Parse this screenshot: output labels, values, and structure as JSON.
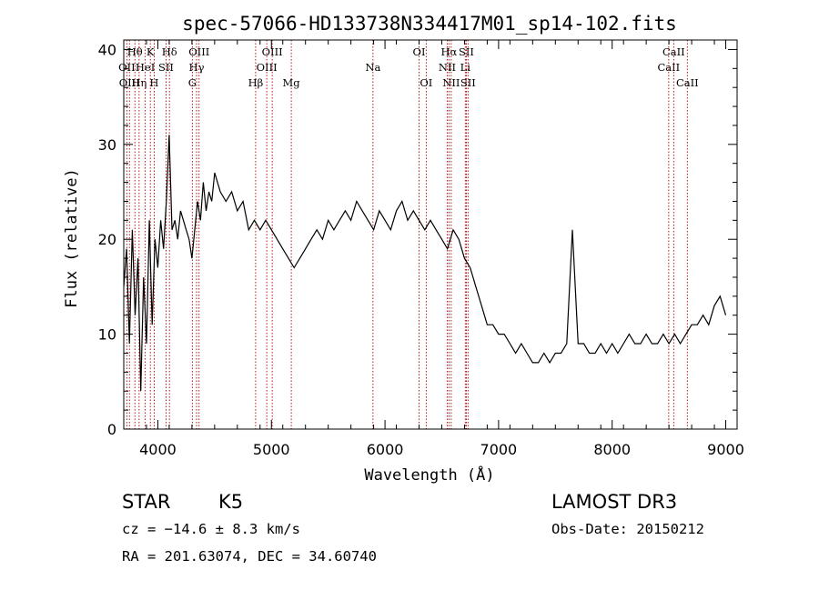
{
  "title": "spec-57066-HD133738N334417M01_sp14-102.fits",
  "info": {
    "object_class": "STAR",
    "subclass": "K5",
    "redshift": "cz = −14.6 ± 8.3 km/s",
    "coords": "RA = 201.63074, DEC =  34.60740",
    "survey": "LAMOST DR3",
    "obs_date": "Obs-Date: 20150212"
  },
  "colors": {
    "spectrum": "#000000",
    "line_marker": "#b00000",
    "background": "#ffffff"
  },
  "chart_data": {
    "type": "line",
    "title": "spec-57066-HD133738N334417M01_sp14-102.fits",
    "xlabel": "Wavelength (Å)",
    "ylabel": "Flux (relative)",
    "xlim": [
      3700,
      9100
    ],
    "ylim": [
      0,
      41
    ],
    "xticks": [
      4000,
      5000,
      6000,
      7000,
      8000,
      9000
    ],
    "yticks": [
      0,
      10,
      20,
      30,
      40
    ],
    "grid": false,
    "series": [
      {
        "x": [
          3700,
          3725,
          3750,
          3775,
          3800,
          3825,
          3850,
          3875,
          3900,
          3925,
          3950,
          3975,
          4000,
          4025,
          4050,
          4075,
          4100,
          4125,
          4150,
          4175,
          4200,
          4225,
          4250,
          4275,
          4300,
          4325,
          4350,
          4375,
          4400,
          4425,
          4450,
          4475,
          4500,
          4550,
          4600,
          4650,
          4700,
          4750,
          4800,
          4850,
          4900,
          4950,
          5000,
          5050,
          5100,
          5150,
          5200,
          5250,
          5300,
          5350,
          5400,
          5450,
          5500,
          5550,
          5600,
          5650,
          5700,
          5750,
          5800,
          5850,
          5900,
          5950,
          6000,
          6050,
          6100,
          6150,
          6200,
          6250,
          6300,
          6350,
          6400,
          6450,
          6500,
          6550,
          6600,
          6650,
          6700,
          6750,
          6800,
          6850,
          6900,
          6950,
          7000,
          7050,
          7100,
          7150,
          7200,
          7250,
          7300,
          7350,
          7400,
          7450,
          7500,
          7550,
          7600,
          7650,
          7700,
          7750,
          7800,
          7850,
          7900,
          7950,
          8000,
          8050,
          8100,
          8150,
          8200,
          8250,
          8300,
          8350,
          8400,
          8450,
          8500,
          8550,
          8600,
          8650,
          8700,
          8750,
          8800,
          8850,
          8900,
          8950,
          9000
        ],
        "values": [
          15,
          19,
          9,
          21,
          12,
          18,
          4,
          16,
          9,
          22,
          11,
          20,
          17,
          22,
          19,
          24,
          31,
          21,
          22,
          20,
          23,
          22,
          21,
          20,
          18,
          21,
          24,
          22,
          26,
          23,
          25,
          24,
          27,
          25,
          24,
          25,
          23,
          24,
          21,
          22,
          21,
          22,
          21,
          20,
          19,
          18,
          17,
          18,
          19,
          20,
          21,
          20,
          22,
          21,
          22,
          23,
          22,
          24,
          23,
          22,
          21,
          23,
          22,
          21,
          23,
          24,
          22,
          23,
          22,
          21,
          22,
          21,
          20,
          19,
          21,
          20,
          18,
          17,
          15,
          13,
          11,
          11,
          10,
          10,
          9,
          8,
          9,
          8,
          7,
          7,
          8,
          7,
          8,
          8,
          9,
          21,
          9,
          9,
          8,
          8,
          9,
          8,
          9,
          8,
          9,
          10,
          9,
          9,
          10,
          9,
          9,
          10,
          9,
          10,
          9,
          10,
          11,
          11,
          12,
          11,
          13,
          14,
          12
        ]
      }
    ],
    "line_markers": [
      {
        "name": "OII",
        "x": 3727,
        "row": 1
      },
      {
        "name": "OIII",
        "x": 3750,
        "row": 2
      },
      {
        "name": "Hθ",
        "x": 3798,
        "row": 0
      },
      {
        "name": "Hη",
        "x": 3835,
        "row": 2
      },
      {
        "name": "HeI",
        "x": 3889,
        "row": 1
      },
      {
        "name": "K",
        "x": 3934,
        "row": 0
      },
      {
        "name": "H",
        "x": 3968,
        "row": 2
      },
      {
        "name": "SII",
        "x": 4072,
        "row": 1
      },
      {
        "name": "Hδ",
        "x": 4102,
        "row": 0
      },
      {
        "name": "G",
        "x": 4304,
        "row": 2
      },
      {
        "name": "Hγ",
        "x": 4341,
        "row": 1
      },
      {
        "name": "OIII",
        "x": 4363,
        "row": 0
      },
      {
        "name": "Hβ",
        "x": 4861,
        "row": 2
      },
      {
        "name": "OIII",
        "x": 4959,
        "row": 1
      },
      {
        "name": "OIII",
        "x": 5007,
        "row": 0
      },
      {
        "name": "Mg",
        "x": 5175,
        "row": 2
      },
      {
        "name": "Na",
        "x": 5894,
        "row": 1
      },
      {
        "name": "OI",
        "x": 6300,
        "row": 0
      },
      {
        "name": "OI",
        "x": 6363,
        "row": 2
      },
      {
        "name": "NII",
        "x": 6548,
        "row": 1
      },
      {
        "name": "Hα",
        "x": 6563,
        "row": 0
      },
      {
        "name": "NII",
        "x": 6583,
        "row": 2
      },
      {
        "name": "Li",
        "x": 6707,
        "row": 1
      },
      {
        "name": "SII",
        "x": 6716,
        "row": 0
      },
      {
        "name": "SII",
        "x": 6731,
        "row": 2
      },
      {
        "name": "CaII",
        "x": 8498,
        "row": 1
      },
      {
        "name": "CaII",
        "x": 8542,
        "row": 0
      },
      {
        "name": "CaII",
        "x": 8662,
        "row": 2
      }
    ]
  }
}
